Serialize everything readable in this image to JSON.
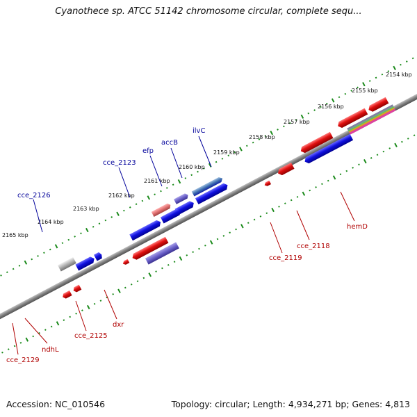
{
  "title": "Cyanothece sp. ATCC 51142 chromosome circular, complete sequ...",
  "accession": "Accession: NC_010546",
  "topology": "Topology: circular; Length: 4,934,271 bp; Genes: 4,813",
  "colors": {
    "forward_gene": "#1010e0",
    "reverse_gene": "#e01010",
    "backbone": "#808080",
    "ticks": "#1a8a1a",
    "forward_label": "#00009a",
    "reverse_label": "#b00000"
  },
  "kbp_labels": [
    "2154 kbp",
    "2155 kbp",
    "2156 kbp",
    "2157 kbp",
    "2158 kbp",
    "2159 kbp",
    "2160 kbp",
    "2161 kbp",
    "2162 kbp",
    "2163 kbp",
    "2164 kbp",
    "2165 kbp"
  ],
  "gene_labels": {
    "ilvC": "ilvC",
    "accB": "accB",
    "efp": "efp",
    "cce_2123": "cce_2123",
    "cce_2126": "cce_2126",
    "hemD": "hemD",
    "cce_2118": "cce_2118",
    "cce_2119": "cce_2119",
    "dxr": "dxr",
    "cce_2125": "cce_2125",
    "ndhL": "ndhL",
    "cce_2129": "cce_2129"
  }
}
